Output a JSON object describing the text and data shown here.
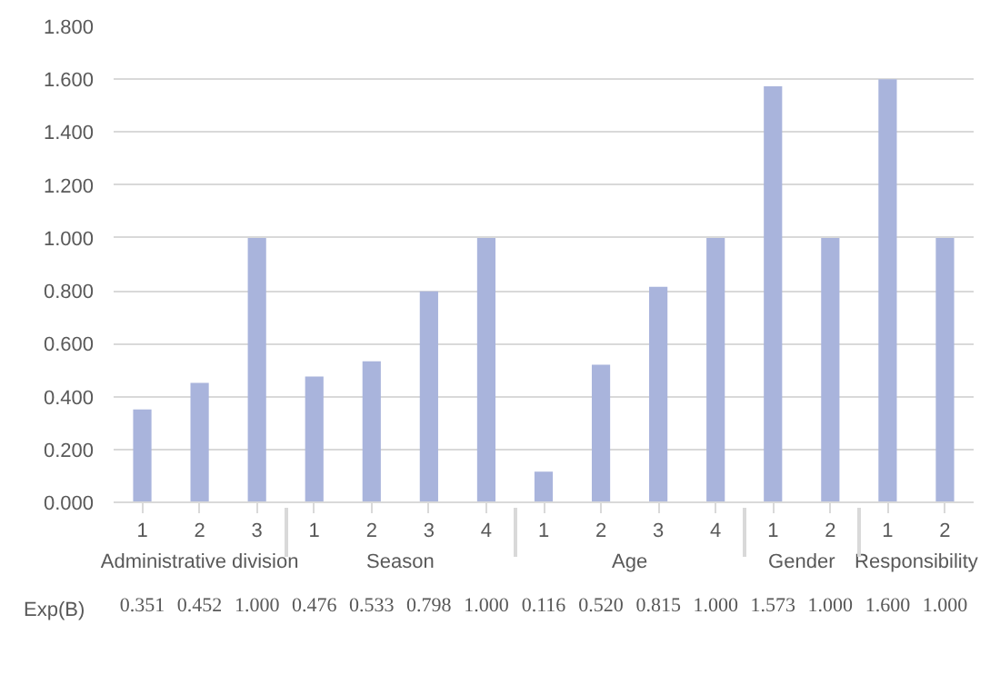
{
  "chart_data": {
    "type": "bar",
    "categories": [
      "1",
      "2",
      "3",
      "1",
      "2",
      "3",
      "4",
      "1",
      "2",
      "3",
      "4",
      "1",
      "2",
      "1",
      "2"
    ],
    "series": [
      {
        "name": "Exp(B)",
        "color": "#a9b4dc",
        "values": [
          0.351,
          0.452,
          1.0,
          0.476,
          0.533,
          0.798,
          1.0,
          0.116,
          0.52,
          0.815,
          1.0,
          1.573,
          1.0,
          1.6,
          1.0
        ],
        "value_labels": [
          "0.351",
          "0.452",
          "1.000",
          "0.476",
          "0.533",
          "0.798",
          "1.000",
          "0.116",
          "0.520",
          "0.815",
          "1.000",
          "1.573",
          "1.000",
          "1.600",
          "1.000"
        ]
      }
    ],
    "ylim": [
      0,
      1.8
    ],
    "yticks": [
      {
        "value": 0,
        "label": "0.000"
      },
      {
        "value": 0.2,
        "label": "0.200"
      },
      {
        "value": 0.4,
        "label": "0.400"
      },
      {
        "value": 0.6,
        "label": "0.600"
      },
      {
        "value": 0.8,
        "label": "0.800"
      },
      {
        "value": 1.0,
        "label": "1.000"
      },
      {
        "value": 1.2,
        "label": "1.200"
      },
      {
        "value": 1.4,
        "label": "1.400"
      },
      {
        "value": 1.6,
        "label": "1.600"
      },
      {
        "value": 1.8,
        "label": "1.800"
      }
    ],
    "annotations": [
      "Administrative division",
      "Season",
      "Age",
      "Gender",
      "Responsibility"
    ],
    "grid": "y",
    "legend": "bottom left"
  }
}
